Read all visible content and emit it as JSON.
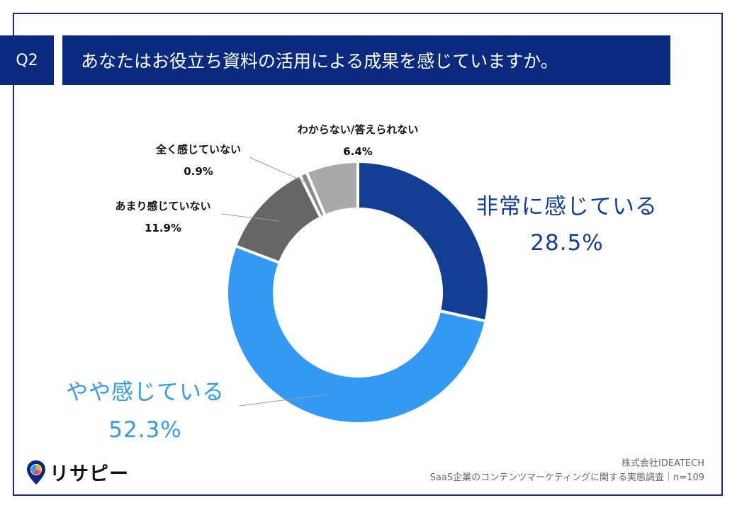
{
  "header": {
    "q_label": "Q2",
    "question": "あなたはお役立ち資料の活用による成果を感じていますか。"
  },
  "chart_data": {
    "type": "pie",
    "variant": "donut",
    "start": "top",
    "direction": "clockwise",
    "categories": [
      "非常に感じている",
      "やや感じている",
      "あまり感じていない",
      "全く感じていない",
      "わからない/答えられない"
    ],
    "values": [
      28.5,
      52.3,
      11.9,
      0.9,
      6.4
    ],
    "value_labels": [
      "28.5%",
      "52.3%",
      "11.9%",
      "0.9%",
      "6.4%"
    ],
    "colors": [
      "#123f94",
      "#3399f3",
      "#666666",
      "#888888",
      "#a9a9a9"
    ]
  },
  "footer": {
    "logo_text": "リサピー",
    "company": "株式会社IDEATECH",
    "survey": "SaaS企業のコンテンツマーケティングに関する実態調査｜n=109"
  }
}
